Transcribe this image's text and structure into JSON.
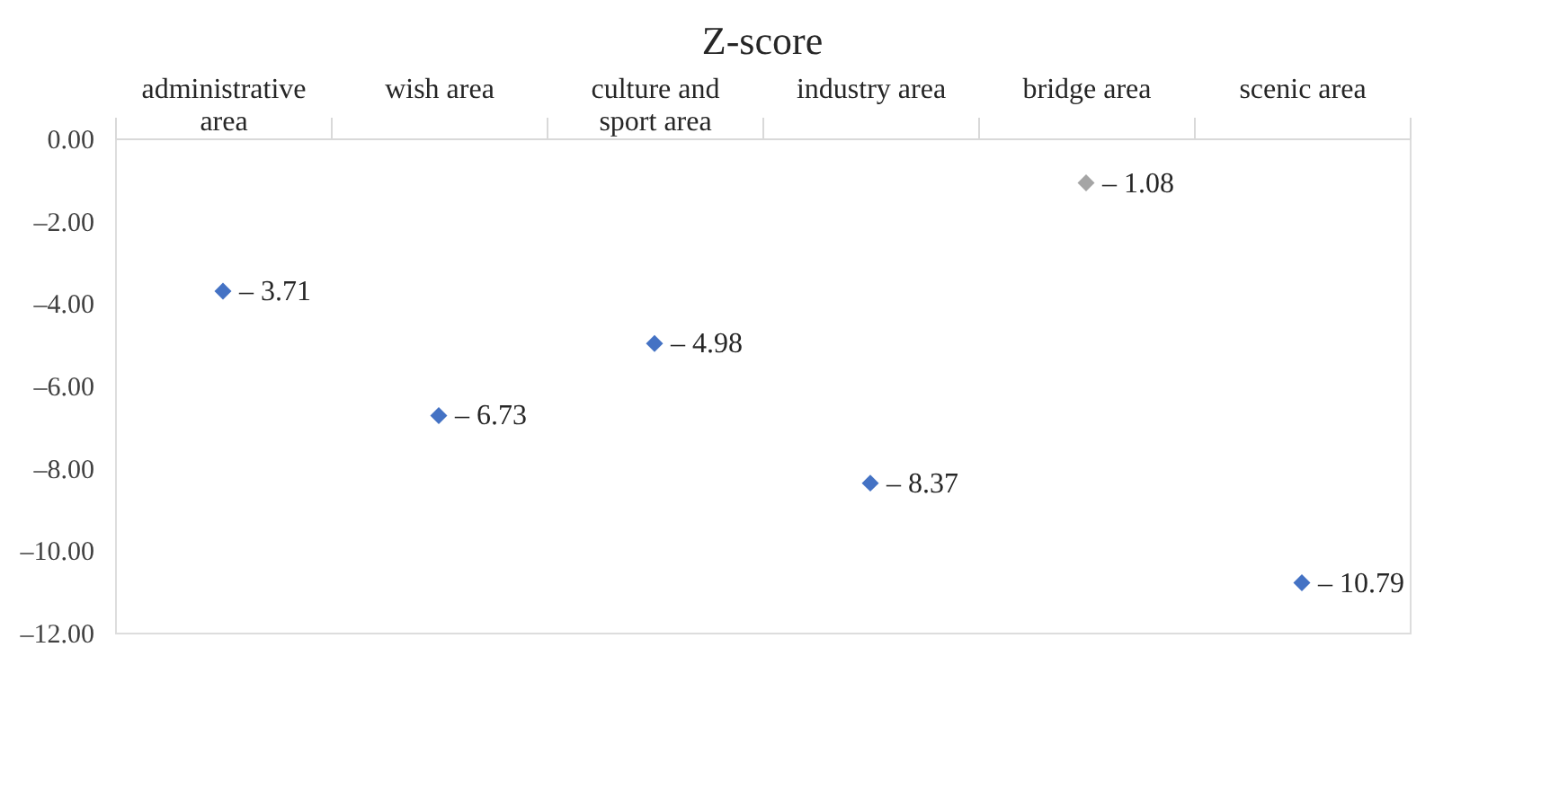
{
  "chart_data": {
    "type": "scatter",
    "title": "Z-score",
    "categories": [
      "administrative area",
      "wish area",
      "culture and sport area",
      "industry area",
      "bridge area",
      "scenic area"
    ],
    "values": [
      -3.71,
      -6.73,
      -4.98,
      -8.37,
      -1.08,
      -10.79
    ],
    "colors": [
      "#4472c4",
      "#4472c4",
      "#4472c4",
      "#4472c4",
      "#a5a5a5",
      "#4472c4"
    ],
    "value_labels": [
      "– 3.71",
      "– 6.73",
      "– 4.98",
      "– 8.37",
      "– 1.08",
      "– 10.79"
    ],
    "marker": "diamond",
    "grid": false,
    "ylim": [
      -12,
      0
    ],
    "yticks": [
      {
        "value": 0,
        "label": "0.00"
      },
      {
        "value": -2,
        "label": "–2.00"
      },
      {
        "value": -4,
        "label": "–4.00"
      },
      {
        "value": -6,
        "label": "–6.00"
      },
      {
        "value": -8,
        "label": "–8.00"
      },
      {
        "value": -10,
        "label": "–10.00"
      },
      {
        "value": -12,
        "label": "–12.00"
      }
    ]
  }
}
